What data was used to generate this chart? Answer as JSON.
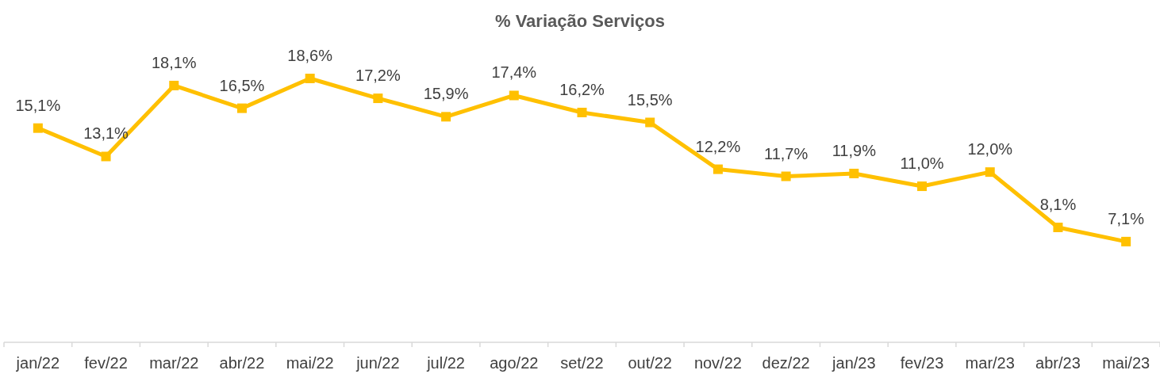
{
  "chart_data": {
    "type": "line",
    "title": "% Variação Serviços",
    "categories": [
      "jan/22",
      "fev/22",
      "mar/22",
      "abr/22",
      "mai/22",
      "jun/22",
      "jul/22",
      "ago/22",
      "set/22",
      "out/22",
      "nov/22",
      "dez/22",
      "jan/23",
      "fev/23",
      "mar/23",
      "abr/23",
      "mai/23"
    ],
    "series": [
      {
        "color": "#ffc000",
        "values": [
          15.1,
          13.1,
          18.1,
          16.5,
          18.6,
          17.2,
          15.9,
          17.4,
          16.2,
          15.5,
          12.2,
          11.7,
          11.9,
          11.0,
          12.0,
          8.1,
          7.1
        ],
        "value_labels": [
          "15,1%",
          "13,1%",
          "18,1%",
          "16,5%",
          "18,6%",
          "17,2%",
          "15,9%",
          "17,4%",
          "16,2%",
          "15,5%",
          "12,2%",
          "11,7%",
          "11,9%",
          "11,0%",
          "12,0%",
          "8,1%",
          "7,1%"
        ]
      }
    ],
    "tick_labels": "x",
    "marker": "square",
    "line_style": "solid"
  }
}
